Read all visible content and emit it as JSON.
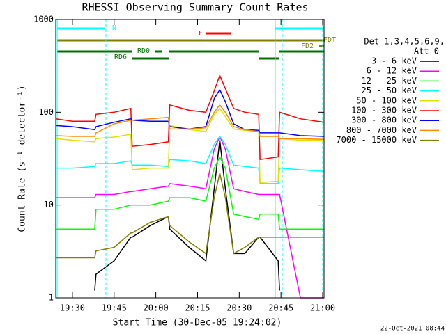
{
  "chart_data": {
    "type": "line",
    "title": "RHESSI Observing Summary Count Rates",
    "xlabel": "Start Time (30-Dec-05 19:24:02)",
    "ylabel": "Count Rate (s⁻¹ detector⁻¹)",
    "timestamp": "22-Oct-2021 08:44",
    "legend_header": [
      "Det 1,3,4,5,6,9,",
      "Att 0"
    ],
    "annotations": [
      "N",
      "F",
      "FDT",
      "FD2",
      "RD0",
      "RD6"
    ],
    "log_y": true,
    "xlim": [
      1164,
      1260.5
    ],
    "ylim": [
      1,
      1000
    ],
    "yticks": [
      1,
      10,
      100,
      1000
    ],
    "xticks": [
      {
        "value": 1170,
        "label": "19:30"
      },
      {
        "value": 1185,
        "label": "19:45"
      },
      {
        "value": 1200,
        "label": "20:00"
      },
      {
        "value": 1215,
        "label": "20:15"
      },
      {
        "value": 1230,
        "label": "20:30"
      },
      {
        "value": 1245,
        "label": "20:45"
      },
      {
        "value": 1260,
        "label": "21:00"
      }
    ],
    "x": [
      1164,
      1170,
      1178,
      1178.5,
      1185,
      1191,
      1191.5,
      1198,
      1204.5,
      1205,
      1212,
      1218,
      1221,
      1223,
      1225,
      1228,
      1232,
      1237,
      1237.5,
      1244,
      1244.5,
      1252,
      1260.5
    ],
    "series": [
      {
        "name": "3 - 6 keV",
        "color": "#000000",
        "values": [
          null,
          null,
          1.2,
          1.8,
          2.5,
          4.5,
          4.5,
          6,
          7.5,
          5.5,
          3.5,
          2.5,
          15,
          50,
          15,
          3,
          3,
          4.5,
          4.5,
          2.5,
          1.2,
          null,
          null
        ]
      },
      {
        "name": "6 - 12 keV",
        "color": "#ff00ff",
        "values": [
          12,
          12,
          12,
          13,
          13,
          14,
          14,
          15,
          16,
          17,
          16,
          15,
          40,
          55,
          40,
          15,
          14,
          13,
          13,
          13,
          13,
          1,
          1
        ]
      },
      {
        "name": "12 - 25 keV",
        "color": "#00ff00",
        "values": [
          5.5,
          5.5,
          5.5,
          9,
          9,
          10,
          10,
          10,
          11,
          12,
          12,
          11,
          25,
          33,
          25,
          8,
          7.5,
          7,
          8,
          8,
          5.5,
          5.5,
          5.5
        ]
      },
      {
        "name": "25 - 50 keV",
        "color": "#00ffff",
        "values": [
          25,
          25,
          26,
          28,
          28,
          30,
          27,
          27,
          26,
          31,
          30,
          28,
          45,
          55,
          45,
          27,
          26,
          25,
          17,
          17,
          25,
          24,
          23
        ]
      },
      {
        "name": "50 - 100 keV",
        "color": "#e0e000",
        "values": [
          52,
          50,
          48,
          52,
          54,
          58,
          24,
          25,
          25,
          72,
          65,
          62,
          95,
          110,
          90,
          66,
          64,
          62,
          17.5,
          18,
          52,
          50,
          50
        ]
      },
      {
        "name": "100 - 300 keV",
        "color": "#ff0000",
        "values": [
          85,
          80,
          80,
          95,
          100,
          110,
          43,
          45,
          48,
          120,
          105,
          100,
          170,
          250,
          180,
          110,
          100,
          95,
          31,
          33,
          100,
          85,
          78
        ]
      },
      {
        "name": "300 - 800 keV",
        "color": "#0000ff",
        "values": [
          72,
          70,
          65,
          70,
          78,
          85,
          82,
          80,
          80,
          70,
          66,
          70,
          140,
          175,
          130,
          75,
          65,
          64,
          60,
          60,
          60,
          56,
          55
        ]
      },
      {
        "name": "800 - 7000 keV",
        "color": "#ff8c00",
        "values": [
          56,
          55,
          55,
          60,
          75,
          82,
          82,
          85,
          88,
          66,
          66,
          68,
          100,
          120,
          100,
          70,
          65,
          62,
          55,
          55,
          52,
          52,
          51
        ]
      },
      {
        "name": "7000 - 15000 keV",
        "color": "#808000",
        "values": [
          2.7,
          2.7,
          2.7,
          3.2,
          3.5,
          5,
          5,
          6.5,
          7.5,
          6,
          4,
          3,
          12,
          22,
          12,
          3,
          3.5,
          4.5,
          4.5,
          4.5,
          4.5,
          4.5,
          4.5
        ]
      }
    ]
  }
}
